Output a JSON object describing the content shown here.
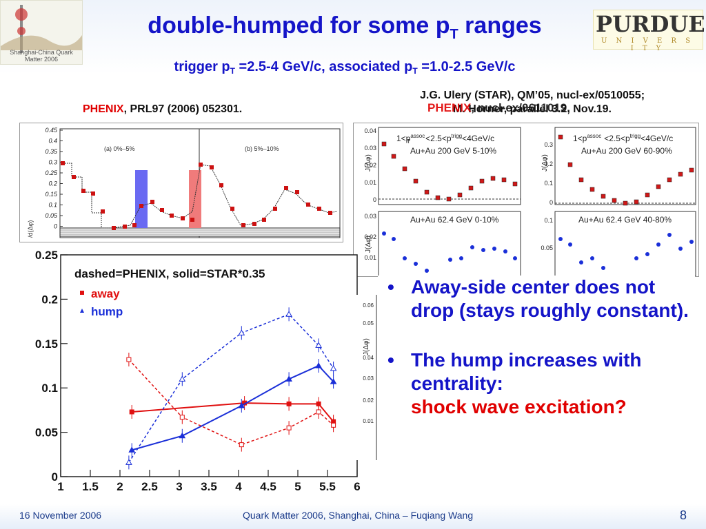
{
  "slide": {
    "title": "double-humped for some p",
    "title_sub": "T",
    "title_rest": " ranges",
    "subtitle": {
      "part1": "trigger p",
      "sub1": "T",
      "part2": " =2.5-4 GeV/c, associated p",
      "sub2": "T",
      "part3": " =1.0-2.5 GeV/c"
    },
    "logo_left_text": "Shanghai-China Quark Matter 2006",
    "logo_right": {
      "name": "PURDUE",
      "sub": "U N I V E R S I T Y"
    }
  },
  "references": {
    "phenix_left": {
      "name": "PHENIX",
      "rest": ", PRL97 (2006) 052301."
    },
    "star_line1": "J.G. Ulery (STAR), QM’05, nucl-ex/0510055;",
    "star_line2": "M. Horner, parallel 3.2, Nov.19.",
    "phenix_overlay": {
      "name": "PHENIX",
      "rest": ", nucl-ex/0611019."
    }
  },
  "phenix_plot": {
    "ylabel": "/d(Δφ)",
    "yticks": [
      "0.45",
      "0.4",
      "0.35",
      "0.3",
      "0.25",
      "0.2",
      "0.15",
      "0.1",
      "0.05",
      "0"
    ],
    "panel_a_label": "(a) 0%–5%",
    "panel_b_label": "(b) 5%–10%",
    "colors": {
      "band_blue": "#6a6af2",
      "band_red": "#f07b7b",
      "marker": "#cc1111"
    }
  },
  "star_plots": {
    "ylabel": "J(Δφ)",
    "top_left": {
      "label_line1": "1<p",
      "label_line2": "Au+Au 200 GeV 5-10%",
      "yticks": [
        "0.04",
        "0.03",
        "0.02",
        "0.01",
        "0"
      ]
    },
    "top_right": {
      "label_line2": "Au+Au 200 GeV 60-90%",
      "yticks": [
        "0.3",
        "0.2",
        "0.1",
        "0"
      ]
    },
    "mid_left": {
      "label": "Au+Au 62.4 GeV 0-10%",
      "yticks": [
        "0.03",
        "0.02",
        "0.01"
      ]
    },
    "mid_right": {
      "label": "Au+Au 62.4 GeV 40-80%",
      "yticks": [
        "0.1",
        "0.05"
      ]
    },
    "bottom_left": {
      "yticks": [
        "0.06",
        "0.05",
        "0.04",
        "0.03",
        "0.02",
        "0.01"
      ]
    },
    "pt_range_text": "<2.5<p",
    "pt_range_text2": "<4GeV/c",
    "assoc": "assoc",
    "trigg": "trigg",
    "T": "T"
  },
  "chart_data": {
    "type": "line",
    "title": "",
    "legend_note": "dashed=PHENIX, solid=STAR*0.35",
    "legend": [
      {
        "name": "away",
        "marker": "square",
        "color": "#e01010"
      },
      {
        "name": "hump",
        "marker": "triangle",
        "color": "#1a2fd8"
      }
    ],
    "xlim": [
      1,
      6
    ],
    "ylim": [
      0,
      0.25
    ],
    "xticks": [
      "1",
      "1.5",
      "2",
      "2.5",
      "3",
      "3.5",
      "4",
      "4.5",
      "5",
      "5.5",
      "6"
    ],
    "yticks": [
      "0",
      "0.05",
      "0.1",
      "0.15",
      "0.2",
      "0.25"
    ],
    "series": [
      {
        "name": "away",
        "source": "STAR",
        "style": "solid",
        "color": "#e01010",
        "x": [
          2.2,
          4.1,
          4.85,
          5.35,
          5.6
        ],
        "y": [
          0.073,
          0.083,
          0.082,
          0.082,
          0.062
        ]
      },
      {
        "name": "hump",
        "source": "STAR",
        "style": "solid",
        "color": "#1a2fd8",
        "x": [
          2.2,
          3.05,
          4.05,
          4.85,
          5.35,
          5.6
        ],
        "y": [
          0.03,
          0.046,
          0.08,
          0.11,
          0.125,
          0.107
        ]
      },
      {
        "name": "away",
        "source": "PHENIX",
        "style": "dashed",
        "color": "#e01010",
        "x": [
          2.15,
          3.05,
          4.05,
          4.85,
          5.35,
          5.6
        ],
        "y": [
          0.132,
          0.067,
          0.036,
          0.055,
          0.073,
          0.058
        ]
      },
      {
        "name": "hump",
        "source": "PHENIX",
        "style": "dashed",
        "color": "#1a2fd8",
        "x": [
          2.15,
          3.05,
          4.05,
          4.85,
          5.35,
          5.6
        ],
        "y": [
          0.016,
          0.11,
          0.162,
          0.183,
          0.148,
          0.122
        ]
      }
    ]
  },
  "bullets": [
    {
      "text": "Away-side center does not drop (stays roughly constant).",
      "emphasis": ""
    },
    {
      "text": "The hump increases with centrality:",
      "emphasis": "shock wave excitation?"
    }
  ],
  "footer": {
    "date": "16 November 2006",
    "center": "Quark Matter 2006, Shanghai, China – Fuqiang Wang",
    "page": "8"
  }
}
